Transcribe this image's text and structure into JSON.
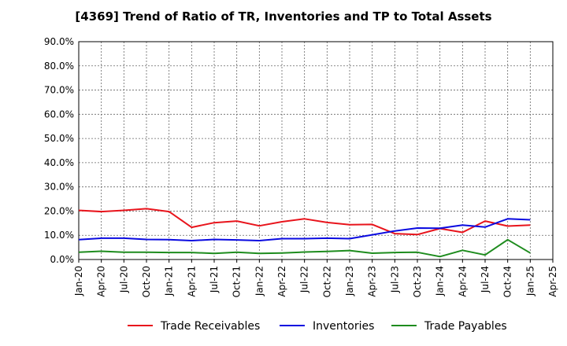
{
  "chart_data": {
    "type": "line",
    "title": "[4369]  Trend of Ratio of TR, Inventories and TP to Total Assets",
    "xlabel": "",
    "ylabel": "",
    "ylim": [
      0,
      90
    ],
    "yticks": [
      0,
      10,
      20,
      30,
      40,
      50,
      60,
      70,
      80,
      90
    ],
    "ytick_labels": [
      "0.0%",
      "10.0%",
      "20.0%",
      "30.0%",
      "40.0%",
      "50.0%",
      "60.0%",
      "70.0%",
      "80.0%",
      "90.0%"
    ],
    "x_tick_labels": [
      "Jan-20",
      "Apr-20",
      "Jul-20",
      "Oct-20",
      "Jan-21",
      "Apr-21",
      "Jul-21",
      "Oct-21",
      "Jan-22",
      "Apr-22",
      "Jul-22",
      "Oct-22",
      "Jan-23",
      "Apr-23",
      "Jul-23",
      "Oct-23",
      "Jan-24",
      "Apr-24",
      "Jul-24",
      "Oct-24",
      "Jan-25",
      "Apr-25"
    ],
    "x": [
      "Jan-20",
      "Apr-20",
      "Jul-20",
      "Oct-20",
      "Jan-21",
      "Apr-21",
      "Jul-21",
      "Oct-21",
      "Jan-22",
      "Apr-22",
      "Jul-22",
      "Oct-22",
      "Jan-23",
      "Apr-23",
      "Jul-23",
      "Oct-23",
      "Jan-24",
      "Apr-24",
      "Jul-24",
      "Oct-24",
      "Jan-25"
    ],
    "grid": true,
    "legend_position": "bottom",
    "series": [
      {
        "name": "Trade Receivables",
        "color": "#e8141c",
        "values": [
          20.3,
          19.8,
          20.3,
          21.0,
          19.8,
          13.3,
          15.2,
          15.9,
          13.9,
          15.6,
          16.8,
          15.3,
          14.4,
          14.5,
          10.7,
          10.3,
          12.8,
          11.2,
          15.9,
          13.8,
          14.2
        ]
      },
      {
        "name": "Inventories",
        "color": "#0a0ae0",
        "values": [
          8.2,
          8.8,
          8.8,
          8.3,
          8.2,
          7.8,
          8.3,
          8.1,
          7.8,
          8.6,
          8.6,
          8.8,
          8.6,
          10.2,
          11.8,
          13.0,
          12.9,
          14.2,
          13.4,
          16.8,
          16.4
        ]
      },
      {
        "name": "Trade Payables",
        "color": "#1e8c1e",
        "values": [
          3.0,
          3.4,
          3.0,
          3.0,
          2.9,
          2.9,
          2.5,
          3.0,
          2.5,
          2.7,
          3.1,
          3.3,
          3.7,
          2.6,
          2.9,
          3.0,
          1.2,
          3.8,
          1.9,
          8.2,
          2.7
        ]
      }
    ]
  }
}
